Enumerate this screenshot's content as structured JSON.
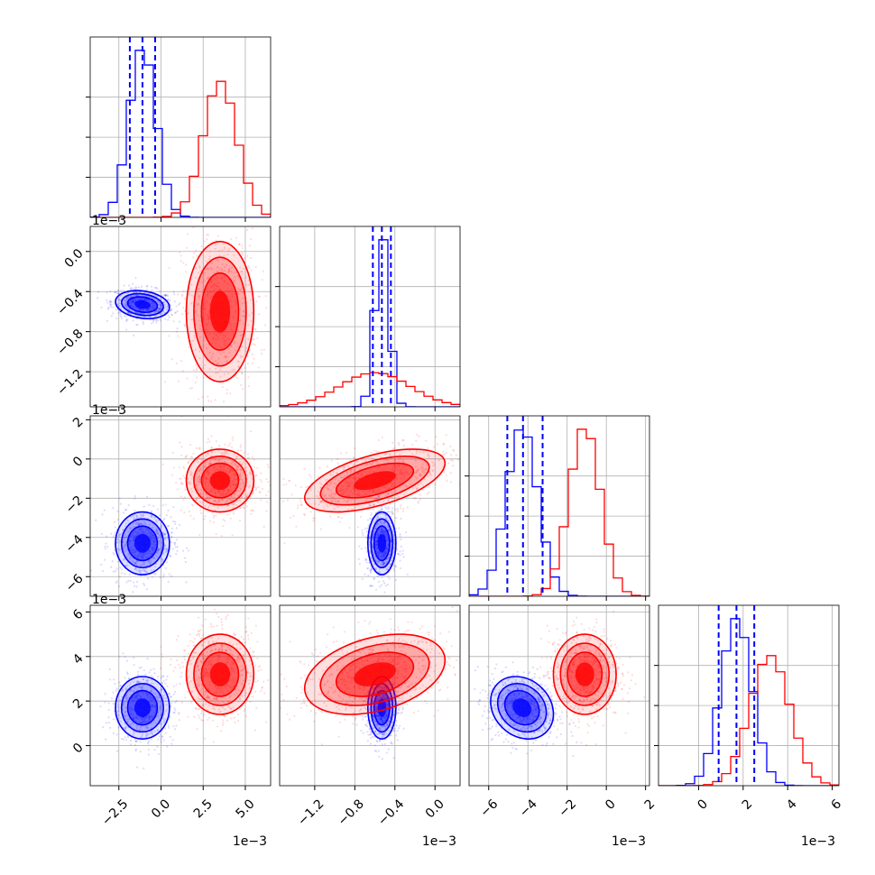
{
  "colors": {
    "blue": "#0000ff",
    "red": "#ff0000",
    "grid": "#b0b0b0"
  },
  "chart_data": {
    "type": "corner",
    "grid": true,
    "parameters": 4,
    "axes": [
      {
        "range": [
          -4.2,
          6.5
        ],
        "ticks": [
          -2.5,
          0.0,
          2.5,
          5.0
        ],
        "tick_labels": [
          "−2.5",
          "0.0",
          "2.5",
          "5.0"
        ]
      },
      {
        "range": [
          -1.55,
          0.25
        ],
        "ticks": [
          -1.2,
          -0.8,
          -0.4,
          0.0
        ],
        "tick_labels": [
          "−1.2",
          "−0.8",
          "−0.4",
          "0.0"
        ]
      },
      {
        "range": [
          -7.0,
          2.2
        ],
        "ticks": [
          -6,
          -4,
          -2,
          0,
          2
        ],
        "tick_labels": [
          "−6",
          "−4",
          "−2",
          "0",
          "2"
        ]
      },
      {
        "range": [
          -1.8,
          6.3
        ],
        "ticks": [
          0,
          2,
          4,
          6
        ],
        "tick_labels": [
          "0",
          "2",
          "4",
          "6"
        ]
      }
    ],
    "offset_label": "1e−3",
    "series": [
      {
        "color": "blue",
        "mean": [
          -1.1,
          -0.53,
          -4.3,
          1.7
        ],
        "std": [
          0.8,
          0.07,
          0.8,
          0.7
        ],
        "corr": [
          [
            0,
            1,
            -0.2
          ],
          [
            2,
            3,
            -0.2
          ]
        ],
        "quantiles": [
          [
            -1.85,
            -1.1,
            -0.35
          ],
          [
            -0.62,
            -0.53,
            -0.44
          ],
          [
            -5.05,
            -4.25,
            -3.25
          ],
          [
            0.9,
            1.7,
            2.5
          ]
        ]
      },
      {
        "color": "red",
        "mean": [
          3.5,
          -0.6,
          -1.1,
          3.2
        ],
        "std": [
          1.0,
          0.35,
          0.8,
          0.9
        ],
        "corr": [
          [
            1,
            2,
            0.55
          ],
          [
            1,
            3,
            0.35
          ]
        ]
      }
    ]
  }
}
